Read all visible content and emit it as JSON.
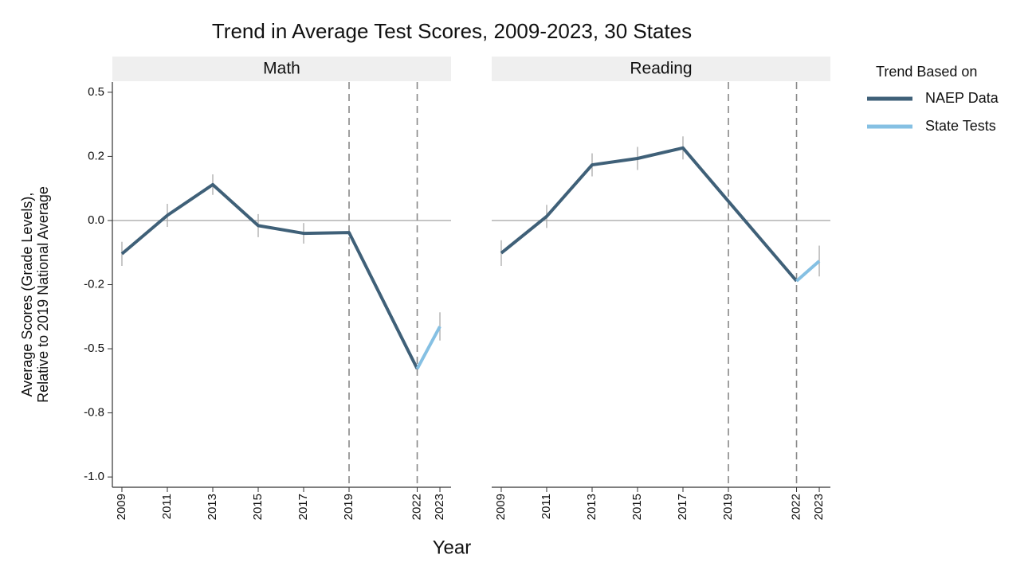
{
  "chart_data": {
    "type": "line",
    "title": "Trend in Average Test Scores, 2009-2023, 30 States",
    "x_label": "Year",
    "y_label": [
      "Average Scores (Grade Levels),",
      "Relative to 2019 National Average"
    ],
    "legend": {
      "title": "Trend Based on",
      "position": "right",
      "entries": [
        {
          "name": "NAEP Data",
          "color": "#3f6078"
        },
        {
          "name": "State Tests",
          "color": "#85c0e3"
        }
      ]
    },
    "xlim": [
      2008.58,
      2023.49
    ],
    "xticks": [
      2009,
      2011,
      2013,
      2015,
      2017,
      2019,
      2022,
      2023
    ],
    "ylim": [
      -1.04,
      0.54
    ],
    "yticks": [
      {
        "value": 0.5,
        "label": "0.5"
      },
      {
        "value": 0.25,
        "label": "0.2"
      },
      {
        "value": 0,
        "label": "0.0"
      },
      {
        "value": -0.25,
        "label": "-0.2"
      },
      {
        "value": -0.5,
        "label": "-0.5"
      },
      {
        "value": -0.75,
        "label": "-0.8"
      },
      {
        "value": -1.0,
        "label": "-1.0"
      }
    ],
    "hline": 0,
    "vlines": [
      2019,
      2022
    ],
    "panels": [
      {
        "title": "Math",
        "series": [
          {
            "x": [
              2009,
              2011,
              2013,
              2015,
              2017,
              2019,
              2022
            ],
            "values": [
              -0.13,
              0.02,
              0.14,
              -0.02,
              -0.05,
              -0.047,
              -0.578
            ],
            "errors": [
              0.047,
              0.045,
              0.04,
              0.045,
              0.04,
              null,
              null
            ]
          },
          {
            "x": [
              2022,
              2023
            ],
            "values": [
              -0.578,
              -0.413
            ],
            "errors": [
              null,
              0.055
            ]
          }
        ]
      },
      {
        "title": "Reading",
        "series": [
          {
            "x": [
              2009,
              2011,
              2013,
              2015,
              2017,
              2019,
              2022
            ],
            "values": [
              -0.127,
              0.016,
              0.217,
              0.242,
              0.283,
              0.075,
              -0.236
            ],
            "errors": [
              0.05,
              0.045,
              0.045,
              0.045,
              0.045,
              null,
              null
            ]
          },
          {
            "x": [
              2022,
              2023
            ],
            "values": [
              -0.236,
              -0.158
            ],
            "errors": [
              null,
              0.06
            ]
          }
        ]
      }
    ]
  }
}
